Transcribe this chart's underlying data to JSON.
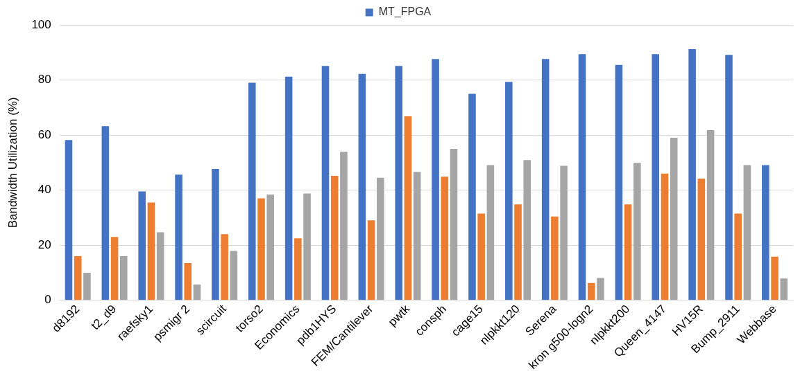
{
  "chart_data": {
    "type": "bar",
    "ylabel": "Bandwidth Utilization (%)",
    "categories": [
      "d8192",
      "t2_d9",
      "raefsky1",
      "psmigr 2",
      "scircuit",
      "torso2",
      "Economics",
      "pdb1HYS",
      "FEM/Cantilever",
      "pwtk",
      "consph",
      "cage15",
      "nlpkkt120",
      "Serena",
      "kron g500-logn2",
      "nlpkkt200",
      "Queen_4147",
      "HV15R",
      "Bump_2911",
      "Webbase"
    ],
    "series": [
      {
        "name": "MT_FPGA",
        "color": "#4472c4",
        "values": [
          58.2,
          63.2,
          39.5,
          45.6,
          47.7,
          79,
          81.2,
          85.1,
          82.2,
          85.1,
          87.6,
          75,
          79.3,
          87.6,
          89.4,
          85.5,
          89.4,
          91.2,
          89.1,
          49.1
        ]
      },
      {
        "color": "#ed7d31",
        "values": [
          16,
          23,
          35.5,
          13.5,
          24,
          37,
          22.5,
          45.2,
          29,
          66.8,
          44.9,
          31.5,
          34.8,
          30.4,
          6.3,
          34.8,
          46,
          44.2,
          31.5,
          15.8
        ]
      },
      {
        "color": "#a5a5a5",
        "values": [
          10,
          16,
          24.7,
          5.7,
          17.9,
          38.4,
          38.8,
          53.9,
          44.5,
          46.6,
          55,
          49.1,
          50.9,
          48.8,
          8.1,
          49.9,
          59,
          61.8,
          49.1,
          7.9
        ]
      }
    ],
    "ylim": [
      0,
      100
    ],
    "yticks": [
      0,
      20,
      40,
      60,
      80,
      100
    ],
    "grid": "y",
    "legend": "top"
  }
}
